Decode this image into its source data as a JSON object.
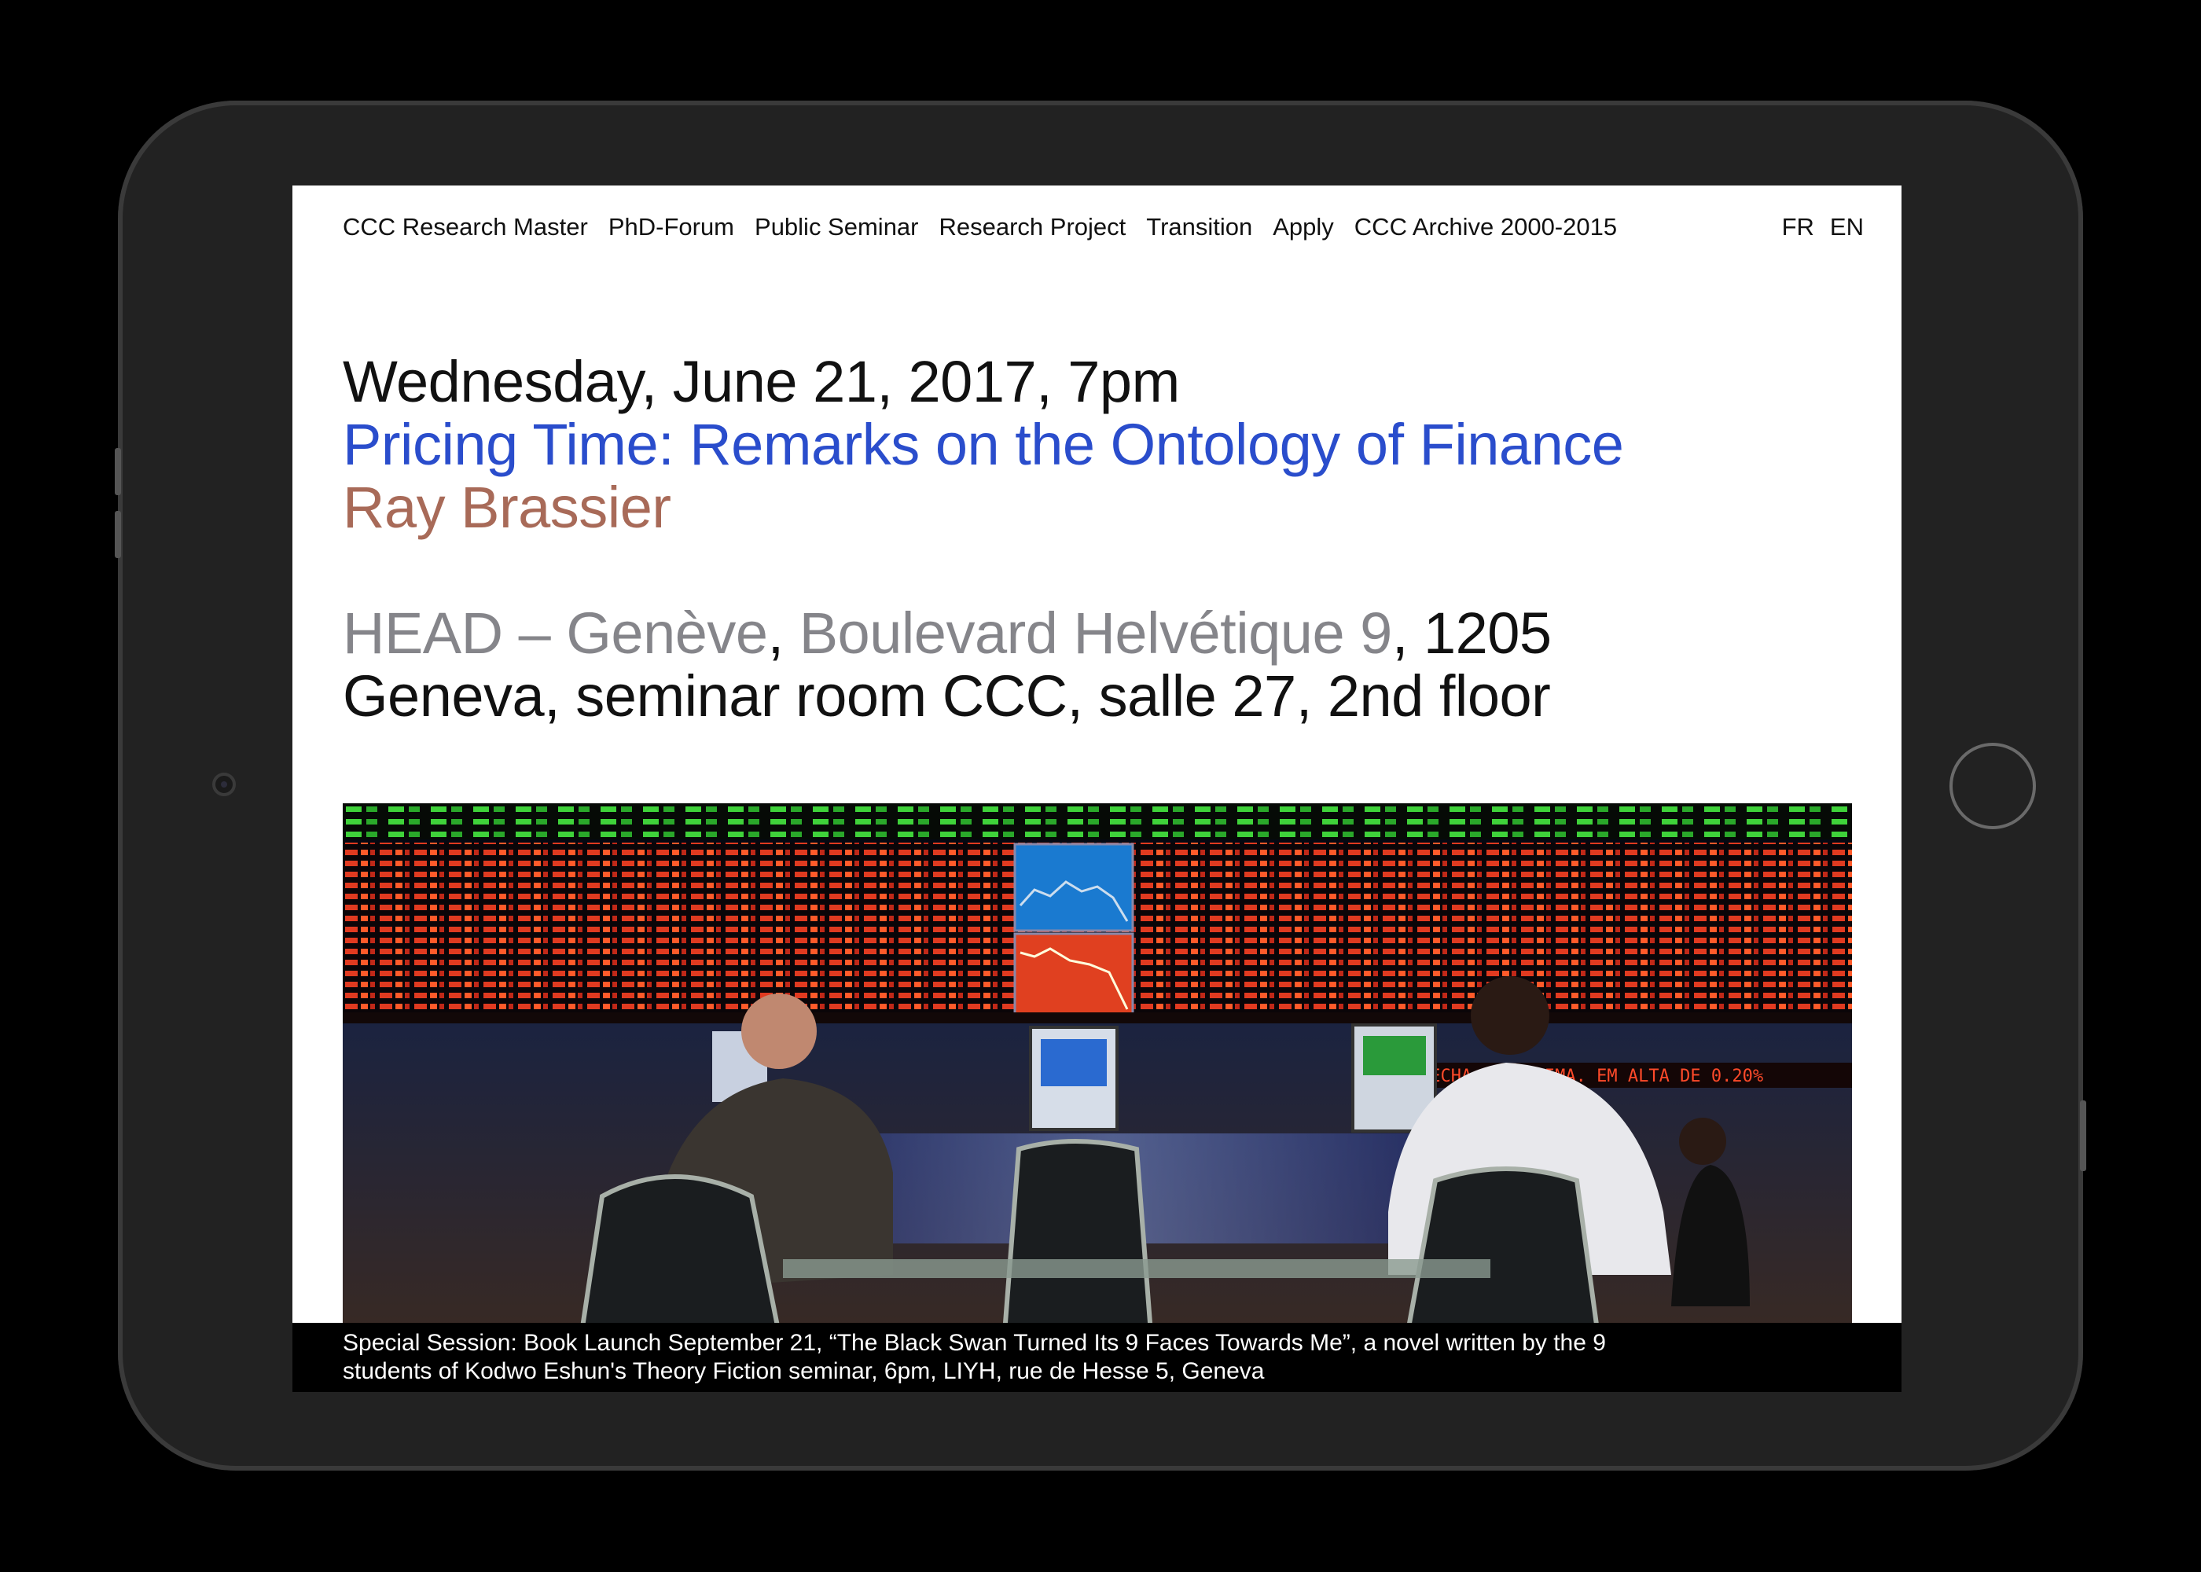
{
  "nav": {
    "items": [
      "CCC Research Master",
      "PhD-Forum",
      "Public Seminar",
      "Research Project",
      "Transition",
      "Apply",
      "CCC Archive 2000-2015"
    ],
    "languages": [
      "FR",
      "EN"
    ]
  },
  "event": {
    "date": "Wednesday, June 21, 2017, 7pm",
    "title": "Pricing Time: Remarks on the Ontology of Finance",
    "speaker": "Ray Brassier",
    "venue_name": "HEAD – Genève",
    "venue_sep": ",",
    "venue_street": "Boulevard Helvétique 9",
    "venue_rest": ", 1205",
    "venue_line2": "Geneva, seminar room CCC, salle 27, 2nd floor"
  },
  "photo": {
    "ticker_text": "FECHA NA MAXIMA. EM ALTA DE 0.20%"
  },
  "caption": {
    "line1": "Special Session: Book Launch September 21, “The Black Swan Turned Its 9 Faces Towards Me”, a novel written by the 9",
    "line2": "students of Kodwo Eshun's Theory Fiction seminar, 6pm, LIYH, rue de Hesse 5, Geneva"
  },
  "colors": {
    "title": "#2a4dcc",
    "speaker": "#a86a58",
    "venue_gray": "#85858a"
  }
}
